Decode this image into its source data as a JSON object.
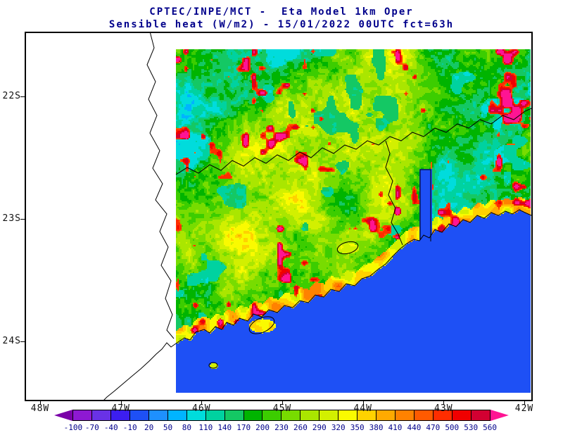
{
  "header": {
    "title_line1": "CPTEC/INPE/MCT -  Eta Model 1km Oper",
    "title_line2": "Sensible heat (W/m2) - 15/01/2022 00UTC fct=63h",
    "title_color": "#00008B"
  },
  "map": {
    "x_axis_labels": [
      "48W",
      "47W",
      "46W",
      "45W",
      "44W",
      "43W",
      "42W"
    ],
    "y_axis_labels": [
      "22S",
      "23S",
      "24S"
    ],
    "frame_color": "#000000",
    "ocean_color": "#1E50F5",
    "background": "#ffffff"
  },
  "colorbar": {
    "tick_labels": [
      "-100",
      "-70",
      "-40",
      "-10",
      "20",
      "50",
      "80",
      "110",
      "140",
      "170",
      "200",
      "230",
      "260",
      "290",
      "320",
      "350",
      "380",
      "410",
      "440",
      "470",
      "500",
      "530",
      "560"
    ],
    "colors": [
      "#7A00A8",
      "#8E19D2",
      "#6932E6",
      "#3C1EF0",
      "#1E50F5",
      "#1E90FF",
      "#00B4FF",
      "#00DCDC",
      "#00D2A0",
      "#14C864",
      "#00B400",
      "#3CCD00",
      "#78DC00",
      "#AAE600",
      "#D2F000",
      "#FAFA00",
      "#FFD200",
      "#FFAA00",
      "#FF8200",
      "#FF5A00",
      "#FF2D00",
      "#F00000",
      "#D20032",
      "#FF1493"
    ],
    "label_color": "#00008B"
  },
  "chart_data": {
    "type": "heatmap",
    "institution": "CPTEC/INPE/MCT",
    "model": "Eta Model 1km Oper",
    "variable": "Sensible heat",
    "units": "W/m2",
    "valid_time": "15/01/2022 00UTC",
    "forecast": "fct=63h",
    "lon_tick_labels": [
      "48W",
      "47W",
      "46W",
      "45W",
      "44W",
      "43W",
      "42W"
    ],
    "lat_tick_labels": [
      "22S",
      "23S",
      "24S"
    ],
    "colorbar_boundaries": [
      -100,
      -70,
      -40,
      -10,
      20,
      50,
      80,
      110,
      140,
      170,
      200,
      230,
      260,
      290,
      320,
      350,
      380,
      410,
      440,
      470,
      500,
      530,
      560
    ],
    "colorbar_step": 30,
    "legend_position": "bottom"
  }
}
